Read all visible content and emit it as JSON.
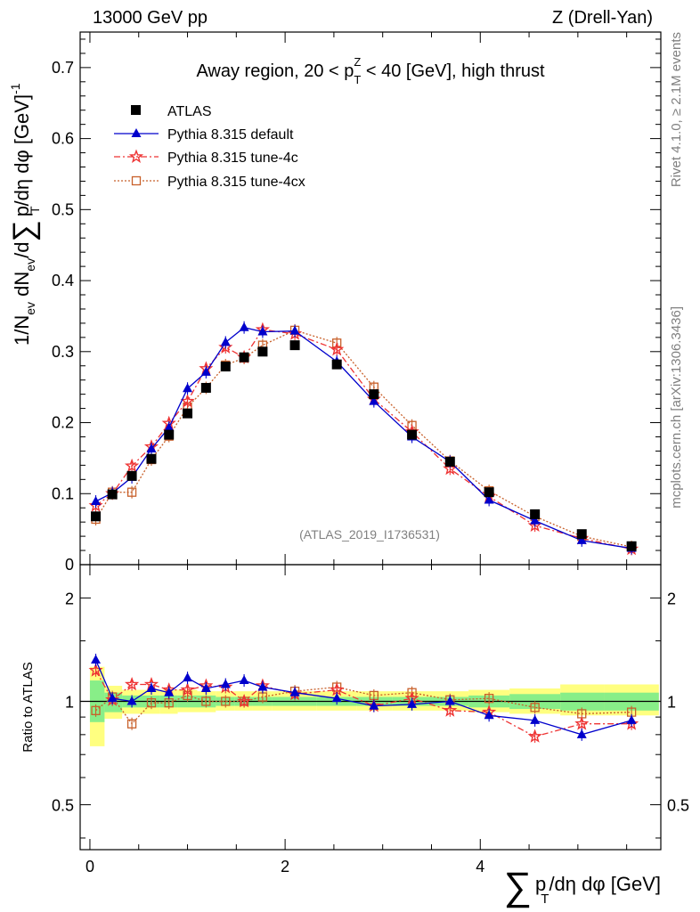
{
  "header": {
    "left": "13000 GeV pp",
    "right": "Z (Drell-Yan)"
  },
  "side_labels": {
    "rivet": "Rivet 4.1.0, ≥ 2.1M events",
    "mcplots": "mcplots.cern.ch [arXiv:1306.3436]"
  },
  "watermark": "(ATLAS_2019_I1736531)",
  "chart_data": [
    {
      "type": "scatter",
      "panel": "main",
      "title": "Away region, 20 < p_T^Z < 40 [GeV], high thrust",
      "title_parts": {
        "pre": "Away region, 20 < p",
        "sup": "Z",
        "sub": "T",
        "post": " < 40 [GeV], high thrust"
      },
      "ylabel": "1/N_ev dN_ev/d∑ p_T /dη dφ [GeV]^-1",
      "ylabel_parts": {
        "a": "1/N",
        "a_sub": "ev",
        "b": " dN",
        "b_sub": "ev",
        "c": "/d",
        "sum": "∑",
        "d": "p",
        "d_sub": "T",
        "e": "/dη dφ  [GeV]",
        "e_sup": "-1"
      },
      "xlim": [
        -0.1,
        5.85
      ],
      "ylim": [
        0,
        0.75
      ],
      "yticks": [
        0,
        0.1,
        0.2,
        0.3,
        0.4,
        0.5,
        0.6,
        0.7
      ],
      "ytick_labels": [
        "0",
        "0.1",
        "0.2",
        "0.3",
        "0.4",
        "0.5",
        "0.6",
        "0.7"
      ],
      "legend": [
        "ATLAS",
        "Pythia 8.315 default",
        "Pythia 8.315 tune-4c",
        "Pythia 8.315 tune-4cx"
      ],
      "legend_position": "top-left",
      "x": [
        0.06,
        0.23,
        0.43,
        0.63,
        0.81,
        1.0,
        1.19,
        1.39,
        1.58,
        1.77,
        2.1,
        2.53,
        2.91,
        3.3,
        3.69,
        4.09,
        4.56,
        5.04,
        5.55
      ],
      "series": [
        {
          "name": "ATLAS",
          "color": "#000000",
          "values": [
            0.068,
            0.099,
            0.125,
            0.149,
            0.183,
            0.213,
            0.249,
            0.279,
            0.292,
            0.3,
            0.309,
            0.282,
            0.24,
            0.183,
            0.145,
            0.102,
            0.071,
            0.043,
            0.026
          ]
        },
        {
          "name": "Pythia 8.315 default",
          "color": "#0000cc",
          "values": [
            0.089,
            0.101,
            0.123,
            0.163,
            0.193,
            0.248,
            0.271,
            0.313,
            0.334,
            0.328,
            0.329,
            0.286,
            0.23,
            0.18,
            0.145,
            0.091,
            0.062,
            0.034,
            0.023
          ]
        },
        {
          "name": "Pythia 8.315 tune-4c",
          "color": "#ee3333",
          "values": [
            0.083,
            0.1,
            0.139,
            0.166,
            0.199,
            0.23,
            0.276,
            0.306,
            0.292,
            0.331,
            0.325,
            0.303,
            0.233,
            0.187,
            0.135,
            0.096,
            0.055,
            0.037,
            0.022
          ]
        },
        {
          "name": "Pythia 8.315 tune-4cx",
          "color": "#c8602a",
          "values": [
            0.064,
            0.102,
            0.102,
            0.148,
            0.181,
            0.222,
            0.249,
            0.281,
            0.291,
            0.309,
            0.33,
            0.312,
            0.25,
            0.196,
            0.146,
            0.104,
            0.068,
            0.04,
            0.025
          ]
        }
      ]
    },
    {
      "type": "scatter",
      "panel": "ratio",
      "ylabel": "Ratio to ATLAS",
      "xlabel": "∑ p_T /dη dφ [GeV]",
      "xlabel_parts": {
        "sum": "∑",
        "a": "p",
        "a_sub": "T",
        "b": "/dη dφ [GeV]"
      },
      "xlim": [
        -0.1,
        5.85
      ],
      "ylim": [
        0.37,
        2.5
      ],
      "yscale": "log",
      "xticks": [
        0,
        2,
        4
      ],
      "xtick_labels": [
        "0",
        "2",
        "4"
      ],
      "yticks": [
        0.5,
        1,
        2
      ],
      "ytick_labels": [
        "0.5",
        "1",
        "2"
      ],
      "band_edges": [
        0.0,
        0.15,
        0.33,
        0.53,
        0.72,
        0.9,
        1.1,
        1.29,
        1.48,
        1.67,
        1.87,
        2.32,
        2.73,
        3.1,
        3.5,
        3.88,
        4.3,
        4.82,
        5.27,
        5.83
      ],
      "band_green": [
        [
          0.87,
          1.15
        ],
        [
          0.93,
          1.06
        ],
        [
          0.96,
          1.04
        ],
        [
          0.96,
          1.04
        ],
        [
          0.96,
          1.04
        ],
        [
          0.96,
          1.04
        ],
        [
          0.96,
          1.04
        ],
        [
          0.97,
          1.03
        ],
        [
          0.97,
          1.03
        ],
        [
          0.97,
          1.03
        ],
        [
          0.97,
          1.03
        ],
        [
          0.97,
          1.03
        ],
        [
          0.97,
          1.03
        ],
        [
          0.97,
          1.03
        ],
        [
          0.97,
          1.03
        ],
        [
          0.96,
          1.04
        ],
        [
          0.95,
          1.05
        ],
        [
          0.94,
          1.06
        ],
        [
          0.94,
          1.06
        ]
      ],
      "band_yellow": [
        [
          0.74,
          1.26
        ],
        [
          0.89,
          1.11
        ],
        [
          0.92,
          1.08
        ],
        [
          0.92,
          1.08
        ],
        [
          0.92,
          1.08
        ],
        [
          0.93,
          1.08
        ],
        [
          0.93,
          1.07
        ],
        [
          0.94,
          1.07
        ],
        [
          0.94,
          1.07
        ],
        [
          0.94,
          1.07
        ],
        [
          0.94,
          1.07
        ],
        [
          0.94,
          1.07
        ],
        [
          0.94,
          1.07
        ],
        [
          0.94,
          1.07
        ],
        [
          0.94,
          1.07
        ],
        [
          0.93,
          1.08
        ],
        [
          0.92,
          1.09
        ],
        [
          0.91,
          1.12
        ],
        [
          0.91,
          1.12
        ]
      ],
      "x": [
        0.06,
        0.23,
        0.43,
        0.63,
        0.81,
        1.0,
        1.19,
        1.39,
        1.58,
        1.77,
        2.1,
        2.53,
        2.91,
        3.3,
        3.69,
        4.09,
        4.56,
        5.04,
        5.55
      ],
      "series": [
        {
          "name": "Pythia 8.315 default",
          "color": "#0000cc",
          "values": [
            1.32,
            1.02,
            1.0,
            1.09,
            1.06,
            1.17,
            1.09,
            1.12,
            1.15,
            1.1,
            1.06,
            1.02,
            0.97,
            0.98,
            1.0,
            0.91,
            0.88,
            0.8,
            0.88
          ]
        },
        {
          "name": "Pythia 8.315 tune-4c",
          "color": "#ee3333",
          "values": [
            1.23,
            1.01,
            1.12,
            1.12,
            1.08,
            1.08,
            1.11,
            1.1,
            1.0,
            1.11,
            1.05,
            1.08,
            0.97,
            1.02,
            0.94,
            0.93,
            0.79,
            0.86,
            0.86
          ]
        },
        {
          "name": "Pythia 8.315 tune-4cx",
          "color": "#c8602a",
          "values": [
            0.94,
            1.03,
            0.86,
            0.99,
            0.99,
            1.04,
            1.0,
            1.0,
            1.0,
            1.03,
            1.07,
            1.1,
            1.04,
            1.06,
            1.01,
            1.02,
            0.96,
            0.92,
            0.93
          ]
        }
      ]
    }
  ]
}
